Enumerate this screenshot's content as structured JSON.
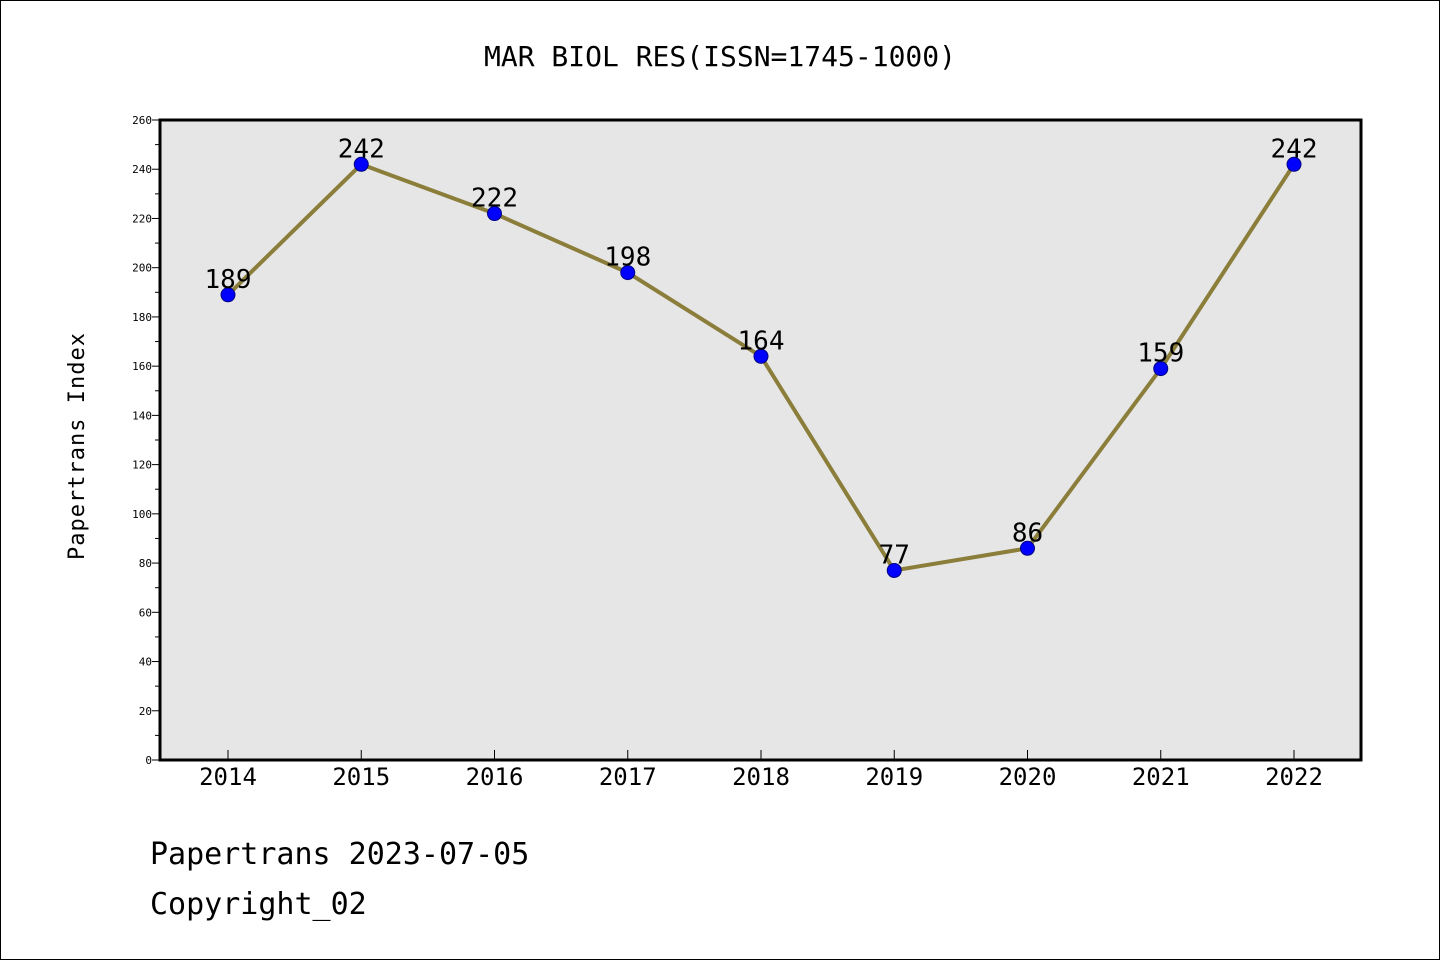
{
  "chart_data": {
    "type": "line",
    "title": "MAR BIOL RES(ISSN=1745-1000)",
    "xlabel": "",
    "ylabel": "Papertrans Index",
    "categories": [
      "2014",
      "2015",
      "2016",
      "2017",
      "2018",
      "2019",
      "2020",
      "2021",
      "2022"
    ],
    "values": [
      189,
      242,
      222,
      198,
      164,
      77,
      86,
      159,
      242
    ],
    "data_labels": [
      "189",
      "242",
      "222",
      "198",
      "164",
      "77",
      "86",
      "159",
      "242"
    ],
    "ylim": [
      0,
      260
    ],
    "yticks": [
      "0",
      "20",
      "40",
      "60",
      "80",
      "100",
      "120",
      "140",
      "160",
      "180",
      "200",
      "220",
      "240",
      "260"
    ],
    "grid": false,
    "colors": {
      "line": "#8B7D3A",
      "marker": "#0000FF",
      "marker_edge": "#000080",
      "plot_background": "#E6E6E6"
    }
  },
  "footer": {
    "line1": "Papertrans 2023-07-05",
    "line2": "Copyright_02"
  }
}
